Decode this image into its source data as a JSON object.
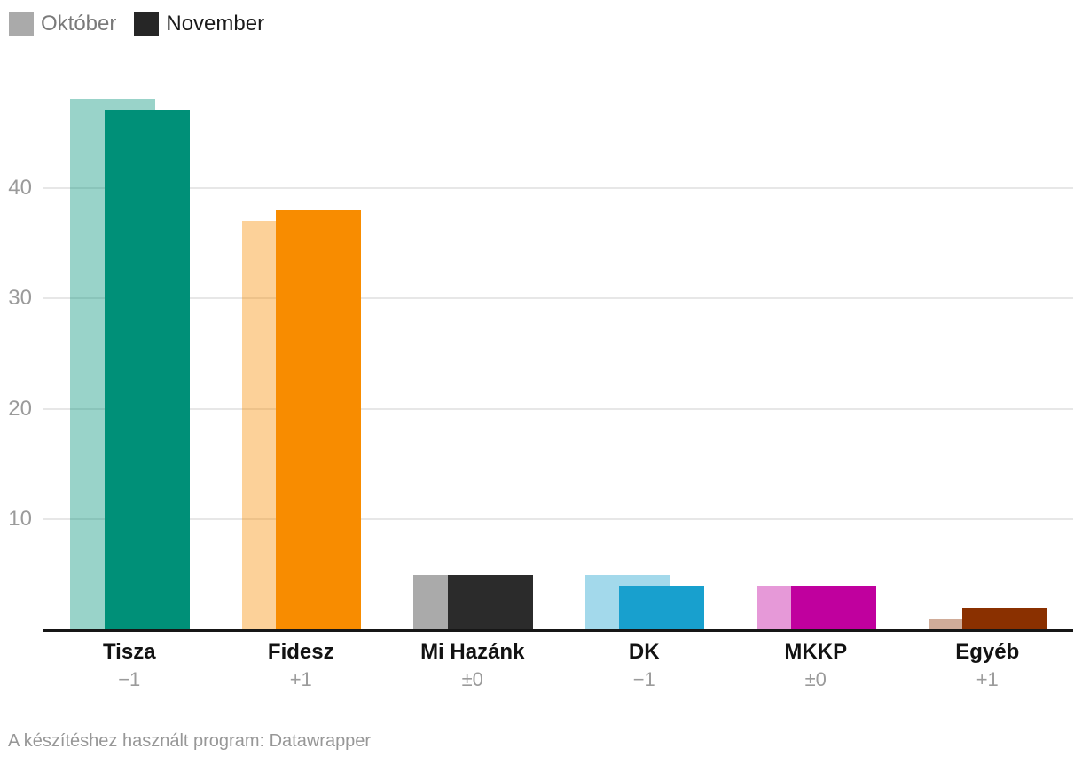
{
  "legend": {
    "items": [
      {
        "label": "Október",
        "swatch_color": "#aaaaaa",
        "label_color": "#7a7a7a"
      },
      {
        "label": "November",
        "swatch_color": "#262626",
        "label_color": "#1a1a1a"
      }
    ]
  },
  "chart_data": {
    "type": "bar",
    "title": "",
    "categories": [
      "Tisza",
      "Fidesz",
      "Mi Hazánk",
      "DK",
      "MKKP",
      "Egyéb"
    ],
    "series": [
      {
        "name": "Október",
        "values": [
          48,
          37,
          5,
          5,
          4,
          1
        ]
      },
      {
        "name": "November",
        "values": [
          47,
          38,
          5,
          4,
          4,
          2
        ]
      }
    ],
    "changes": [
      "−1",
      "+1",
      "±0",
      "−1",
      "±0",
      "+1"
    ],
    "party_colors": [
      {
        "november": "#009078",
        "october": "#99d2c9"
      },
      {
        "november": "#f88c00",
        "october": "#fcd199"
      },
      {
        "november": "#2b2b2b",
        "october": "#aaaaaa"
      },
      {
        "november": "#18a0ce",
        "october": "#a3d9eb"
      },
      {
        "november": "#c0009e",
        "october": "#e699d8"
      },
      {
        "november": "#8a3000",
        "october": "#d0ac99"
      }
    ],
    "y_ticks": [
      10,
      20,
      30,
      40
    ],
    "ylim": [
      0,
      48.5
    ],
    "xlabel": "",
    "ylabel": "",
    "grid": true,
    "gridline_color": "#e7e7e7",
    "legend_position": "top-left"
  },
  "footer": {
    "text": "A készítéshez használt program: Datawrapper"
  }
}
